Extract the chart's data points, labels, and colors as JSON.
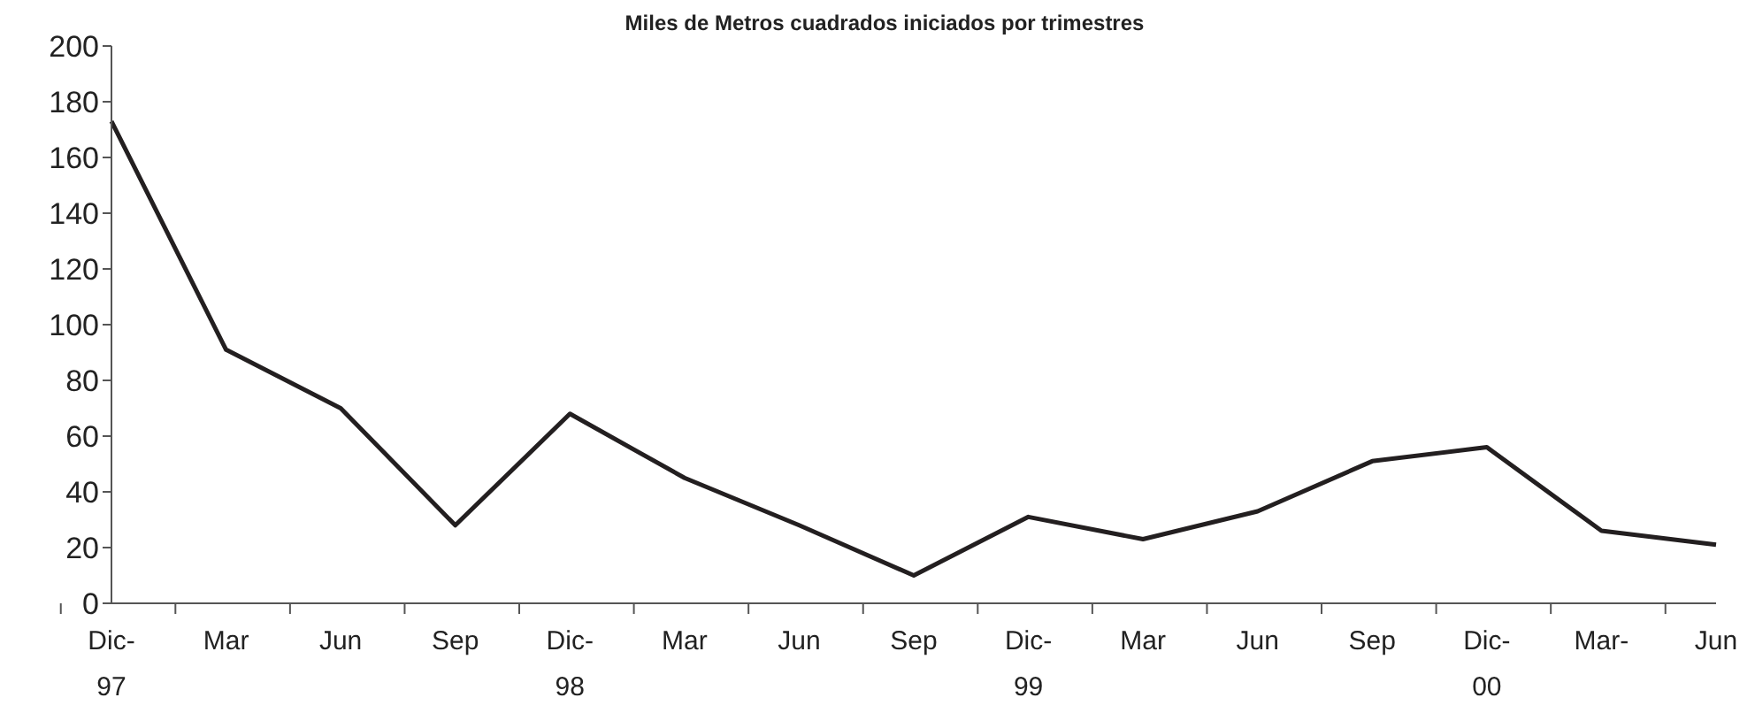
{
  "chart_data": {
    "type": "line",
    "title": "Miles de Metros cuadrados iniciados por trimestres",
    "categories": [
      "Dic-97",
      "Mar",
      "Jun",
      "Sep",
      "Dic-98",
      "Mar",
      "Jun",
      "Sep",
      "Dic-99",
      "Mar",
      "Jun",
      "Sep",
      "Dic-00",
      "Mar-",
      "Jun"
    ],
    "series": [
      {
        "color": "#231f20",
        "values": [
          173,
          91,
          70,
          28,
          68,
          45,
          28,
          10,
          31,
          23,
          33,
          51,
          56,
          26,
          21
        ]
      }
    ],
    "ylim": [
      0,
      200
    ],
    "yticks": [
      0,
      20,
      40,
      60,
      80,
      100,
      120,
      140,
      160,
      180,
      200
    ],
    "grid": false,
    "legend": false,
    "marker": "none",
    "line_style": "solid"
  }
}
